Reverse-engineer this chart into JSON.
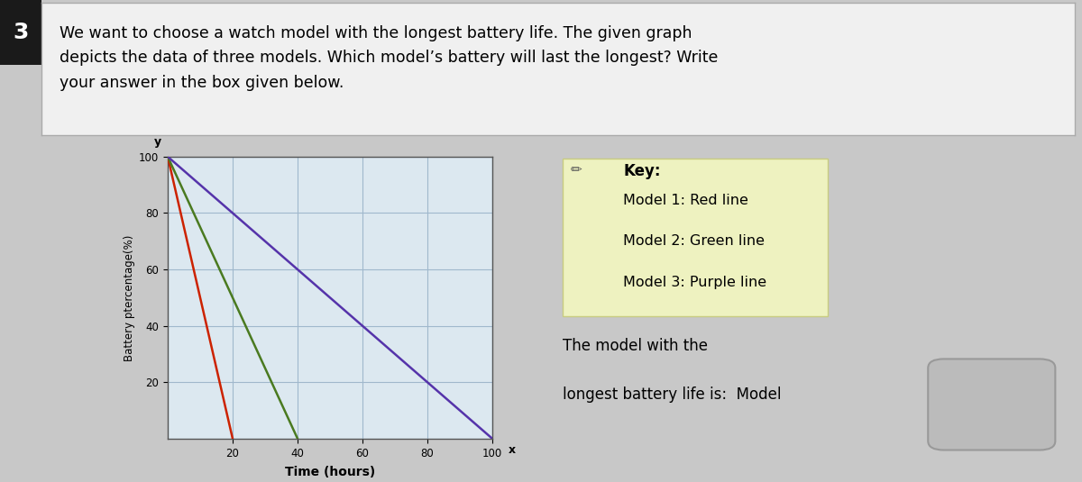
{
  "question_number": "3",
  "question_text": "We want to choose a watch model with the longest battery life. The given graph\ndepicts the data of three models. Which model’s battery will last the longest? Write\nyour answer in the box given below.",
  "bg_color": "#c8c8c8",
  "question_box_color": "#f0f0f0",
  "graph_bg_color": "#dce8f0",
  "key_bg_color": "#eef2c0",
  "models": [
    {
      "name": "Model 1",
      "color": "#cc2200",
      "x_end": 20,
      "label": "Red line"
    },
    {
      "name": "Model 2",
      "color": "#4a7a20",
      "x_end": 40,
      "label": "Green line"
    },
    {
      "name": "Model 3",
      "color": "#5533aa",
      "x_end": 100,
      "label": "Purple line"
    }
  ],
  "y_start": 100,
  "x_ticks": [
    20,
    40,
    60,
    80,
    100
  ],
  "y_ticks": [
    20,
    40,
    60,
    80,
    100
  ],
  "xlabel": "Time (hours)",
  "ylabel": "Battery ptercentage(%)",
  "grid_color": "#a0b8cc",
  "answer_text_line1": "The model with the",
  "answer_text_line2": "longest battery life is:  Model",
  "key_title": "Key:"
}
